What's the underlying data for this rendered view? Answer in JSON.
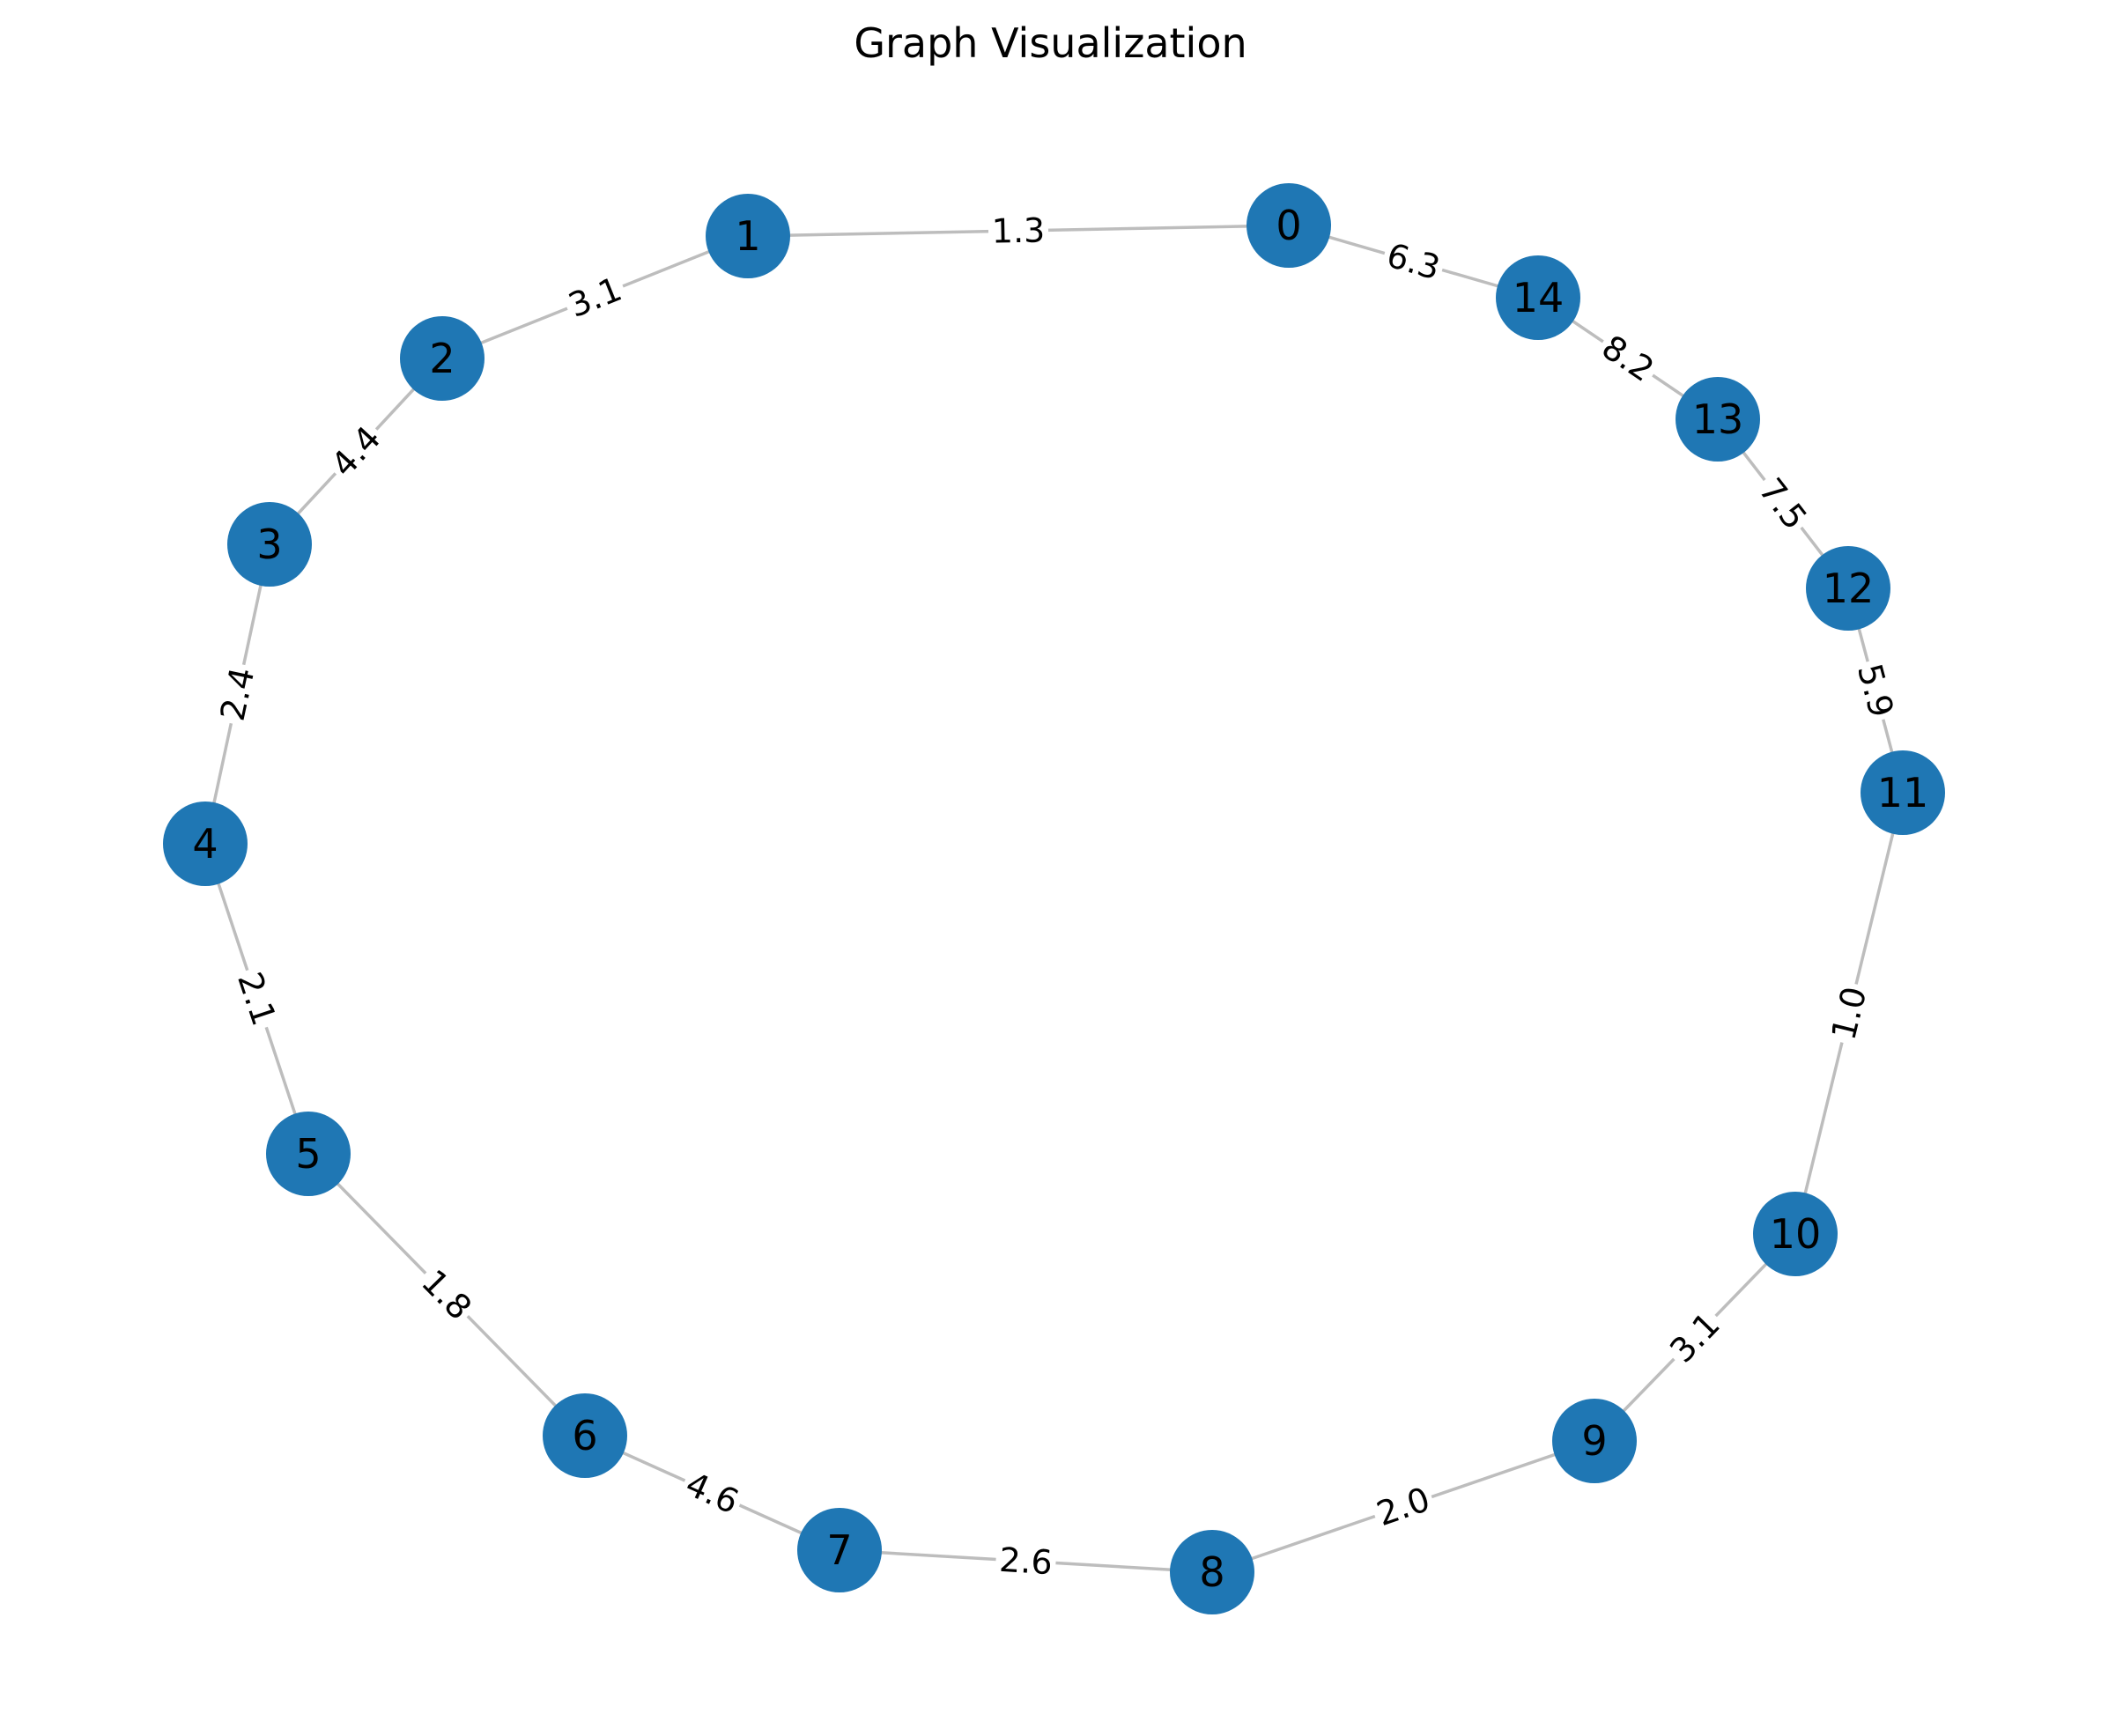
{
  "title": "Graph Visualization",
  "colors": {
    "node": "#1f77b4",
    "edge": "#bdbdbd",
    "text": "#000000"
  },
  "graph": {
    "nodes": [
      {
        "id": "0",
        "label": "0"
      },
      {
        "id": "1",
        "label": "1"
      },
      {
        "id": "2",
        "label": "2"
      },
      {
        "id": "3",
        "label": "3"
      },
      {
        "id": "4",
        "label": "4"
      },
      {
        "id": "5",
        "label": "5"
      },
      {
        "id": "6",
        "label": "6"
      },
      {
        "id": "7",
        "label": "7"
      },
      {
        "id": "8",
        "label": "8"
      },
      {
        "id": "9",
        "label": "9"
      },
      {
        "id": "10",
        "label": "10"
      },
      {
        "id": "11",
        "label": "11"
      },
      {
        "id": "12",
        "label": "12"
      },
      {
        "id": "13",
        "label": "13"
      },
      {
        "id": "14",
        "label": "14"
      }
    ],
    "edges": [
      {
        "source": "0",
        "target": "1",
        "weight": "1.3"
      },
      {
        "source": "1",
        "target": "2",
        "weight": "3.1"
      },
      {
        "source": "2",
        "target": "3",
        "weight": "4.4"
      },
      {
        "source": "3",
        "target": "4",
        "weight": "2.4"
      },
      {
        "source": "4",
        "target": "5",
        "weight": "2.1"
      },
      {
        "source": "5",
        "target": "6",
        "weight": "1.8"
      },
      {
        "source": "6",
        "target": "7",
        "weight": "4.6"
      },
      {
        "source": "7",
        "target": "8",
        "weight": "2.6"
      },
      {
        "source": "8",
        "target": "9",
        "weight": "2.0"
      },
      {
        "source": "9",
        "target": "10",
        "weight": "3.1"
      },
      {
        "source": "10",
        "target": "11",
        "weight": "1.0"
      },
      {
        "source": "11",
        "target": "12",
        "weight": "5.9"
      },
      {
        "source": "12",
        "target": "13",
        "weight": "7.5"
      },
      {
        "source": "13",
        "target": "14",
        "weight": "8.2"
      },
      {
        "source": "14",
        "target": "0",
        "weight": "6.3"
      }
    ]
  }
}
